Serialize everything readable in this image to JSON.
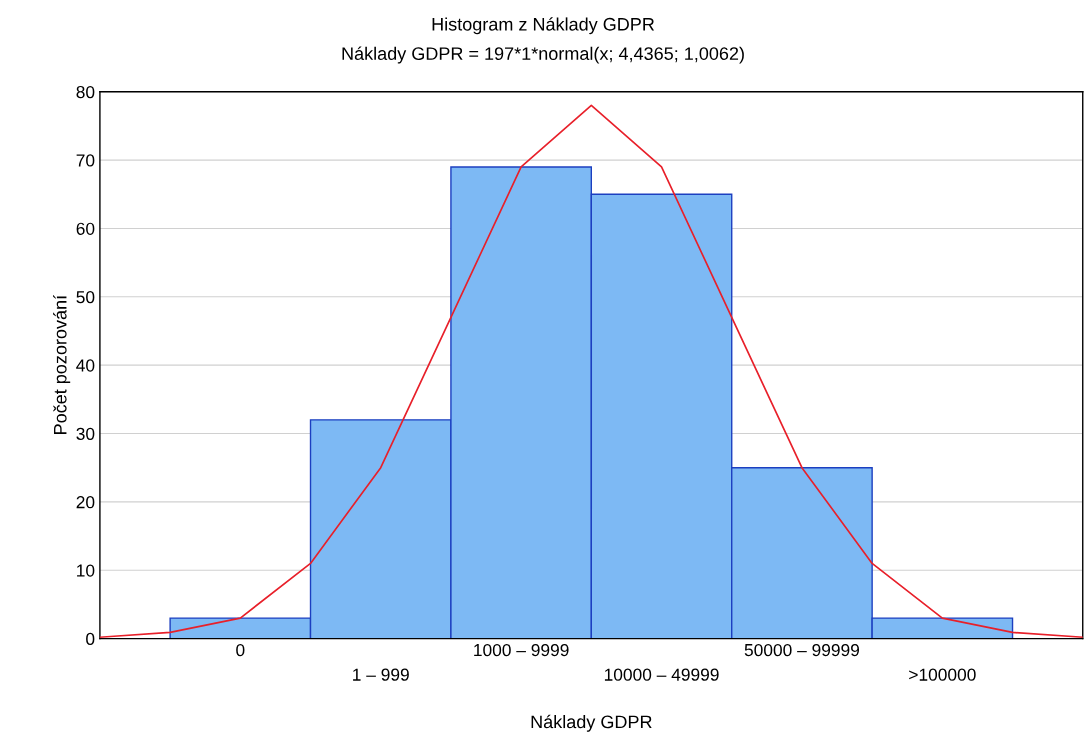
{
  "chart_data": {
    "type": "bar",
    "title": "Histogram z Náklady GDPR",
    "subtitle": "Náklady GDPR = 197*1*normal(x; 4,4365; 1,0062)",
    "xlabel": "Náklady GDPR",
    "ylabel": "Počet pozorování",
    "categories": [
      null,
      null,
      "0",
      null,
      "1 – 999",
      null,
      "1000 – 9999",
      null,
      "10000 – 49999",
      null,
      "50000 – 99999",
      null,
      ">100000",
      null,
      null
    ],
    "series": [
      {
        "color": "#7db9f4",
        "values": [
          null,
          null,
          3,
          null,
          32,
          null,
          69,
          null,
          65,
          null,
          25,
          null,
          3,
          null,
          null
        ]
      },
      {
        "type": "line",
        "color": "#e8202a",
        "values": [
          0.2,
          0.9,
          3,
          11,
          25,
          47,
          69,
          78,
          69,
          47,
          25,
          11,
          3,
          0.9,
          0.2
        ]
      }
    ],
    "ylim": [
      0,
      80
    ],
    "yticks": [
      0,
      10,
      20,
      30,
      40,
      50,
      60,
      70,
      80
    ],
    "grid": "y",
    "legend": false
  }
}
